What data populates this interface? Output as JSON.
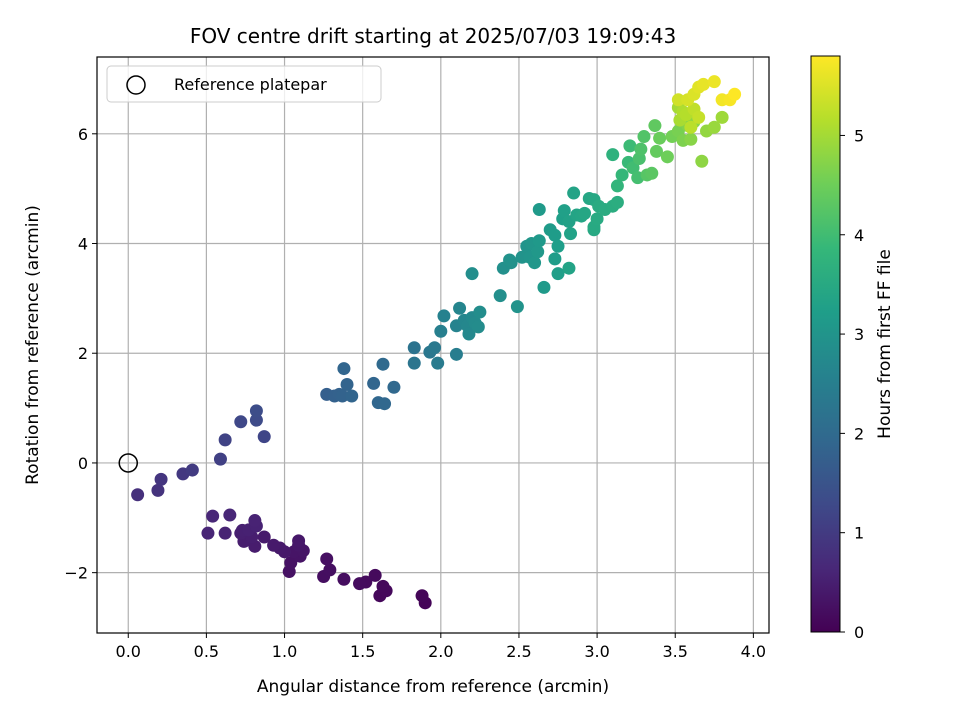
{
  "chart_data": {
    "type": "scatter",
    "title": "FOV centre drift starting at 2025/07/03 19:09:43",
    "xlabel": "Angular distance from reference (arcmin)",
    "ylabel": "Rotation from reference (arcmin)",
    "xlim": [
      -0.2,
      4.1
    ],
    "ylim": [
      -3.1,
      7.4
    ],
    "xticks": [
      0.0,
      0.5,
      1.0,
      1.5,
      2.0,
      2.5,
      3.0,
      3.5,
      4.0
    ],
    "xtick_labels": [
      "0.0",
      "0.5",
      "1.0",
      "1.5",
      "2.0",
      "2.5",
      "3.0",
      "3.5",
      "4.0"
    ],
    "yticks": [
      -2,
      0,
      2,
      4,
      6
    ],
    "ytick_labels": [
      "−2",
      "0",
      "2",
      "4",
      "6"
    ],
    "grid": true,
    "legend": {
      "placement": "upper-left",
      "entries": [
        "Reference platepar"
      ]
    },
    "reference_point": {
      "x": 0.0,
      "y": 0.0,
      "marker": "open-circle",
      "label": "Reference platepar"
    },
    "colorbar": {
      "label": "Hours from first FF file",
      "colormap": "viridis",
      "range": [
        0,
        5.8
      ],
      "ticks": [
        0,
        1,
        2,
        3,
        4,
        5
      ],
      "tick_labels": [
        "0",
        "1",
        "2",
        "3",
        "4",
        "5"
      ]
    },
    "colors": {
      "viridis_stops": [
        "#440154",
        "#482878",
        "#3e4a89",
        "#31688e",
        "#26828e",
        "#1f9e89",
        "#35b779",
        "#6ece58",
        "#b5de2b",
        "#fde725"
      ],
      "grid": "#b0b0b0",
      "frame": "#000000"
    },
    "points": [
      [
        1.9,
        -2.55,
        0.05
      ],
      [
        1.88,
        -2.42,
        0.08
      ],
      [
        1.61,
        -2.42,
        0.1
      ],
      [
        1.65,
        -2.33,
        0.12
      ],
      [
        1.63,
        -2.25,
        0.13
      ],
      [
        1.58,
        -2.05,
        0.15
      ],
      [
        1.52,
        -2.17,
        0.17
      ],
      [
        1.48,
        -2.2,
        0.18
      ],
      [
        1.38,
        -2.12,
        0.2
      ],
      [
        1.25,
        -2.07,
        0.22
      ],
      [
        1.29,
        -1.95,
        0.23
      ],
      [
        1.27,
        -1.75,
        0.25
      ],
      [
        1.03,
        -1.98,
        0.27
      ],
      [
        1.04,
        -1.82,
        0.28
      ],
      [
        1.1,
        -1.7,
        0.3
      ],
      [
        1.06,
        -1.62,
        0.32
      ],
      [
        1.12,
        -1.6,
        0.33
      ],
      [
        1.09,
        -1.5,
        0.35
      ],
      [
        1.09,
        -1.42,
        0.37
      ],
      [
        1.0,
        -1.62,
        0.38
      ],
      [
        0.97,
        -1.55,
        0.4
      ],
      [
        0.93,
        -1.5,
        0.42
      ],
      [
        0.87,
        -1.35,
        0.43
      ],
      [
        0.81,
        -1.52,
        0.45
      ],
      [
        0.74,
        -1.43,
        0.47
      ],
      [
        0.79,
        -1.35,
        0.48
      ],
      [
        0.72,
        -1.28,
        0.5
      ],
      [
        0.73,
        -1.23,
        0.52
      ],
      [
        0.77,
        -1.22,
        0.53
      ],
      [
        0.82,
        -1.15,
        0.55
      ],
      [
        0.81,
        -1.05,
        0.57
      ],
      [
        0.62,
        -1.28,
        0.58
      ],
      [
        0.51,
        -1.28,
        0.6
      ],
      [
        0.54,
        -0.97,
        0.62
      ],
      [
        0.65,
        -0.95,
        0.63
      ],
      [
        0.06,
        -0.58,
        0.8
      ],
      [
        0.19,
        -0.5,
        0.85
      ],
      [
        0.21,
        -0.3,
        0.9
      ],
      [
        0.35,
        -0.2,
        0.95
      ],
      [
        0.41,
        -0.13,
        1.0
      ],
      [
        0.59,
        0.07,
        1.1
      ],
      [
        0.62,
        0.42,
        1.15
      ],
      [
        0.87,
        0.48,
        1.2
      ],
      [
        0.72,
        0.75,
        1.25
      ],
      [
        0.82,
        0.78,
        1.3
      ],
      [
        0.82,
        0.95,
        1.35
      ],
      [
        1.27,
        1.25,
        1.75
      ],
      [
        1.32,
        1.22,
        1.78
      ],
      [
        1.35,
        1.25,
        1.8
      ],
      [
        1.37,
        1.22,
        1.82
      ],
      [
        1.4,
        1.43,
        1.84
      ],
      [
        1.43,
        1.22,
        1.86
      ],
      [
        1.38,
        1.72,
        1.88
      ],
      [
        1.57,
        1.45,
        1.9
      ],
      [
        1.6,
        1.1,
        1.92
      ],
      [
        1.64,
        1.08,
        1.94
      ],
      [
        1.7,
        1.38,
        1.96
      ],
      [
        1.63,
        1.8,
        1.98
      ],
      [
        1.83,
        2.1,
        2.2
      ],
      [
        1.83,
        1.82,
        2.25
      ],
      [
        1.93,
        2.02,
        2.3
      ],
      [
        1.96,
        2.1,
        2.35
      ],
      [
        1.98,
        1.82,
        2.4
      ],
      [
        2.1,
        1.98,
        2.45
      ],
      [
        2.0,
        2.4,
        2.5
      ],
      [
        2.02,
        2.68,
        2.55
      ],
      [
        2.1,
        2.5,
        2.6
      ],
      [
        2.12,
        2.82,
        2.65
      ],
      [
        2.15,
        2.6,
        2.68
      ],
      [
        2.17,
        2.5,
        2.7
      ],
      [
        2.18,
        2.35,
        2.72
      ],
      [
        2.2,
        2.65,
        2.75
      ],
      [
        2.22,
        2.55,
        2.78
      ],
      [
        2.24,
        2.48,
        2.8
      ],
      [
        2.25,
        2.75,
        2.82
      ],
      [
        2.2,
        3.45,
        2.85
      ],
      [
        2.38,
        3.05,
        2.88
      ],
      [
        2.4,
        3.55,
        2.9
      ],
      [
        2.45,
        3.65,
        2.92
      ],
      [
        2.44,
        3.7,
        2.94
      ],
      [
        2.49,
        2.85,
        2.96
      ],
      [
        2.52,
        3.75,
        2.98
      ],
      [
        2.55,
        3.95,
        3.0
      ],
      [
        2.57,
        3.75,
        3.02
      ],
      [
        2.58,
        4.0,
        3.04
      ],
      [
        2.6,
        3.65,
        3.06
      ],
      [
        2.62,
        3.85,
        3.08
      ],
      [
        2.63,
        4.05,
        3.1
      ],
      [
        2.63,
        4.62,
        3.12
      ],
      [
        2.66,
        3.2,
        3.14
      ],
      [
        2.7,
        4.25,
        3.16
      ],
      [
        2.73,
        4.15,
        3.18
      ],
      [
        2.73,
        3.72,
        3.2
      ],
      [
        2.75,
        3.95,
        3.22
      ],
      [
        2.75,
        3.45,
        3.24
      ],
      [
        2.78,
        4.45,
        3.26
      ],
      [
        2.79,
        4.6,
        3.28
      ],
      [
        2.82,
        4.4,
        3.3
      ],
      [
        2.83,
        4.18,
        3.32
      ],
      [
        2.82,
        3.55,
        3.34
      ],
      [
        2.85,
        4.92,
        3.36
      ],
      [
        2.87,
        4.52,
        3.38
      ],
      [
        2.9,
        4.5,
        3.4
      ],
      [
        2.92,
        4.55,
        3.42
      ],
      [
        2.95,
        4.82,
        3.44
      ],
      [
        2.98,
        4.8,
        3.46
      ],
      [
        2.98,
        4.25,
        3.48
      ],
      [
        2.98,
        4.3,
        3.5
      ],
      [
        3.0,
        4.45,
        3.52
      ],
      [
        3.01,
        4.68,
        3.54
      ],
      [
        3.05,
        4.62,
        3.56
      ],
      [
        3.1,
        4.68,
        3.58
      ],
      [
        3.13,
        4.75,
        3.6
      ],
      [
        3.1,
        5.62,
        3.7
      ],
      [
        3.13,
        5.05,
        3.8
      ],
      [
        3.16,
        5.25,
        3.85
      ],
      [
        3.2,
        5.48,
        3.9
      ],
      [
        3.21,
        5.78,
        3.95
      ],
      [
        3.23,
        5.38,
        4.0
      ],
      [
        3.26,
        5.2,
        4.05
      ],
      [
        3.27,
        5.55,
        4.1
      ],
      [
        3.28,
        5.72,
        4.15
      ],
      [
        3.3,
        5.95,
        4.2
      ],
      [
        3.32,
        5.25,
        4.25
      ],
      [
        3.35,
        5.28,
        4.3
      ],
      [
        3.37,
        6.15,
        4.35
      ],
      [
        3.38,
        5.68,
        4.4
      ],
      [
        3.4,
        5.92,
        4.45
      ],
      [
        3.45,
        5.58,
        4.5
      ],
      [
        3.48,
        5.95,
        4.55
      ],
      [
        3.52,
        6.05,
        4.6
      ],
      [
        3.55,
        5.88,
        4.65
      ],
      [
        3.58,
        6.15,
        4.7
      ],
      [
        3.6,
        5.9,
        4.75
      ],
      [
        3.62,
        6.22,
        4.78
      ],
      [
        3.67,
        5.5,
        4.8
      ],
      [
        3.7,
        6.05,
        4.85
      ],
      [
        3.75,
        6.12,
        4.9
      ],
      [
        3.8,
        6.3,
        4.95
      ],
      [
        3.52,
        6.48,
        5.0
      ],
      [
        3.53,
        6.25,
        5.05
      ],
      [
        3.55,
        6.4,
        5.1
      ],
      [
        3.57,
        6.35,
        5.15
      ],
      [
        3.6,
        6.12,
        5.2
      ],
      [
        3.62,
        6.45,
        5.25
      ],
      [
        3.65,
        6.3,
        5.3
      ],
      [
        3.52,
        6.62,
        5.4
      ],
      [
        3.58,
        6.62,
        5.45
      ],
      [
        3.62,
        6.72,
        5.5
      ],
      [
        3.65,
        6.85,
        5.55
      ],
      [
        3.68,
        6.9,
        5.6
      ],
      [
        3.75,
        6.95,
        5.65
      ],
      [
        3.8,
        6.62,
        5.7
      ],
      [
        3.85,
        6.62,
        5.75
      ],
      [
        3.88,
        6.72,
        5.8
      ]
    ]
  }
}
